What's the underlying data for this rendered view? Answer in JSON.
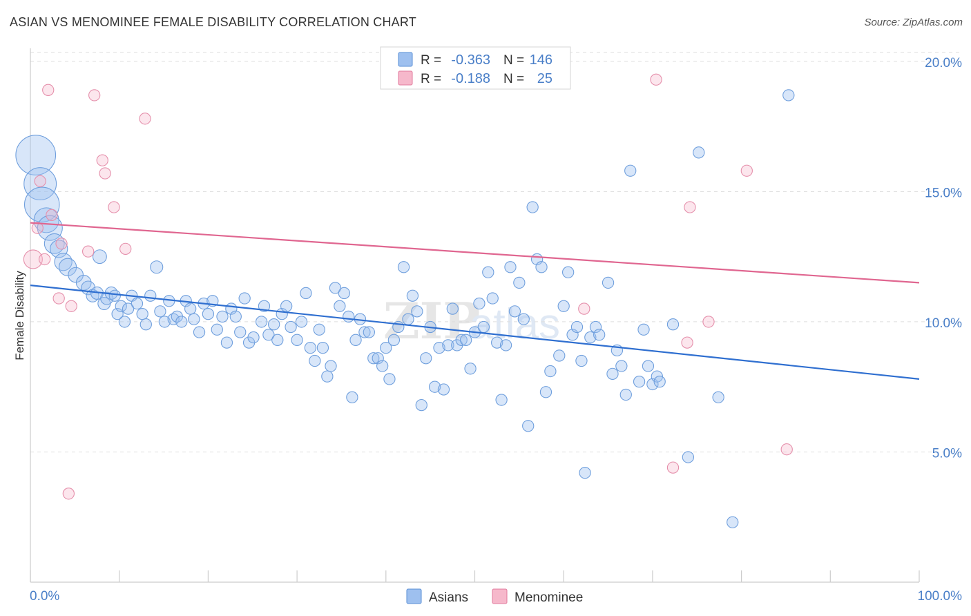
{
  "title": "ASIAN VS MENOMINEE FEMALE DISABILITY CORRELATION CHART",
  "source": "Source: ZipAtlas.com",
  "watermark": {
    "zip": "ZIP",
    "atlas": "atlas"
  },
  "legend_box": {
    "rows": [
      {
        "r_label": "R =",
        "r_value": "-0.363",
        "n_label": "N =",
        "n_value": "146",
        "color": "#9ec0ef",
        "stroke": "#5a8fd6"
      },
      {
        "r_label": "R =",
        "r_value": "-0.188",
        "n_label": "N =",
        "n_value": "25",
        "color": "#f6b8cb",
        "stroke": "#e27a9c"
      }
    ]
  },
  "bottom_legend": [
    {
      "label": "Asians",
      "color": "#9ec0ef",
      "stroke": "#5a8fd6"
    },
    {
      "label": "Menominee",
      "color": "#f6b8cb",
      "stroke": "#e27a9c"
    }
  ],
  "colors": {
    "blue_line": "#2f6fd0",
    "pink_line": "#e06690",
    "axis_text": "#4a7fc8",
    "grid": "#dddddd"
  },
  "chart_data": {
    "type": "scatter",
    "title": "ASIAN VS MENOMINEE FEMALE DISABILITY CORRELATION CHART",
    "xlabel": "",
    "ylabel": "Female Disability",
    "xlim": [
      0,
      100
    ],
    "ylim": [
      0,
      20.5
    ],
    "x_tick_labels": [
      "0.0%",
      "100.0%"
    ],
    "y_ticks": [
      5,
      10,
      15,
      20
    ],
    "y_tick_labels": [
      "5.0%",
      "10.0%",
      "15.0%",
      "20.0%"
    ],
    "series": [
      {
        "name": "Asians",
        "R": -0.363,
        "N": 146,
        "trend": {
          "x": [
            0,
            100
          ],
          "y": [
            11.4,
            7.8
          ]
        },
        "points": [
          [
            0.6,
            16.4,
            3.2
          ],
          [
            1.1,
            15.3,
            2.6
          ],
          [
            1.3,
            14.5,
            2.8
          ],
          [
            1.8,
            13.9,
            2.0
          ],
          [
            2.2,
            13.6,
            2.0
          ],
          [
            2.7,
            13.0,
            1.6
          ],
          [
            3.2,
            12.8,
            1.4
          ],
          [
            3.7,
            12.3,
            1.4
          ],
          [
            4.2,
            12.1,
            1.4
          ],
          [
            5.1,
            11.8,
            1.2
          ],
          [
            6.0,
            11.5,
            1.2
          ],
          [
            6.5,
            11.3,
            1.1
          ],
          [
            7.0,
            11.0,
            1.0
          ],
          [
            7.5,
            11.1,
            1.0
          ],
          [
            7.8,
            12.5,
            1.1
          ],
          [
            8.3,
            10.7,
            1.0
          ],
          [
            8.6,
            10.9,
            1.0
          ],
          [
            9.1,
            11.1,
            1.0
          ],
          [
            9.5,
            11.0,
            0.9
          ],
          [
            9.8,
            10.3,
            0.9
          ],
          [
            10.2,
            10.6,
            0.9
          ],
          [
            10.6,
            10.0,
            0.9
          ],
          [
            11.0,
            10.5,
            0.9
          ],
          [
            11.4,
            11.0,
            0.9
          ],
          [
            12.0,
            10.7,
            0.9
          ],
          [
            12.6,
            10.3,
            0.9
          ],
          [
            13.0,
            9.9,
            0.9
          ],
          [
            13.5,
            11.0,
            0.9
          ],
          [
            14.2,
            12.1,
            1.0
          ],
          [
            14.6,
            10.4,
            0.9
          ],
          [
            15.1,
            10.0,
            0.9
          ],
          [
            15.6,
            10.8,
            0.9
          ],
          [
            16.1,
            10.1,
            0.9
          ],
          [
            16.5,
            10.2,
            0.9
          ],
          [
            17.0,
            10.0,
            0.9
          ],
          [
            17.5,
            10.8,
            0.9
          ],
          [
            18.0,
            10.5,
            0.9
          ],
          [
            18.4,
            10.1,
            0.9
          ],
          [
            19.0,
            9.6,
            0.9
          ],
          [
            19.5,
            10.7,
            0.9
          ],
          [
            20.0,
            10.3,
            0.9
          ],
          [
            20.5,
            10.8,
            0.9
          ],
          [
            21.0,
            9.7,
            0.9
          ],
          [
            21.6,
            10.2,
            0.9
          ],
          [
            22.1,
            9.2,
            0.9
          ],
          [
            22.6,
            10.5,
            0.9
          ],
          [
            23.1,
            10.2,
            0.9
          ],
          [
            23.6,
            9.6,
            0.9
          ],
          [
            24.1,
            10.9,
            0.9
          ],
          [
            24.6,
            9.2,
            0.9
          ],
          [
            25.1,
            9.4,
            0.9
          ],
          [
            26.0,
            10.0,
            0.9
          ],
          [
            26.3,
            10.6,
            0.9
          ],
          [
            26.8,
            9.5,
            0.9
          ],
          [
            27.4,
            9.9,
            0.9
          ],
          [
            27.8,
            9.3,
            0.9
          ],
          [
            28.3,
            10.3,
            0.9
          ],
          [
            28.8,
            10.6,
            0.9
          ],
          [
            29.3,
            9.8,
            0.9
          ],
          [
            30.0,
            9.3,
            0.9
          ],
          [
            30.5,
            10.0,
            0.9
          ],
          [
            31.0,
            11.1,
            0.9
          ],
          [
            31.5,
            9.0,
            0.9
          ],
          [
            32.0,
            8.5,
            0.9
          ],
          [
            32.5,
            9.7,
            0.9
          ],
          [
            32.9,
            9.0,
            0.9
          ],
          [
            33.4,
            7.9,
            0.9
          ],
          [
            33.8,
            8.3,
            0.9
          ],
          [
            34.3,
            11.3,
            0.9
          ],
          [
            34.8,
            10.6,
            0.9
          ],
          [
            35.3,
            11.1,
            0.9
          ],
          [
            35.8,
            10.2,
            0.9
          ],
          [
            36.2,
            7.1,
            0.9
          ],
          [
            36.6,
            9.3,
            0.9
          ],
          [
            37.1,
            10.1,
            0.9
          ],
          [
            37.6,
            9.6,
            0.9
          ],
          [
            38.1,
            9.6,
            0.9
          ],
          [
            38.6,
            8.6,
            0.9
          ],
          [
            39.1,
            8.6,
            0.9
          ],
          [
            39.6,
            8.3,
            0.9
          ],
          [
            40.0,
            9.0,
            0.9
          ],
          [
            40.4,
            7.8,
            0.9
          ],
          [
            40.9,
            9.3,
            0.9
          ],
          [
            41.4,
            9.8,
            0.9
          ],
          [
            42.0,
            12.1,
            0.9
          ],
          [
            42.5,
            10.1,
            0.9
          ],
          [
            43.0,
            11.0,
            0.9
          ],
          [
            43.5,
            10.4,
            0.9
          ],
          [
            44.0,
            6.8,
            0.9
          ],
          [
            44.5,
            8.6,
            0.9
          ],
          [
            45.0,
            9.8,
            0.9
          ],
          [
            45.5,
            7.5,
            0.9
          ],
          [
            46.0,
            9.0,
            0.9
          ],
          [
            46.5,
            7.4,
            0.9
          ],
          [
            47.0,
            9.1,
            0.9
          ],
          [
            47.5,
            10.5,
            0.9
          ],
          [
            48.0,
            9.1,
            0.9
          ],
          [
            48.5,
            9.3,
            0.9
          ],
          [
            49.0,
            9.3,
            0.9
          ],
          [
            49.5,
            8.2,
            0.9
          ],
          [
            50.0,
            9.6,
            0.9
          ],
          [
            50.5,
            10.7,
            0.9
          ],
          [
            51.0,
            9.8,
            0.9
          ],
          [
            51.5,
            11.9,
            0.9
          ],
          [
            52.0,
            10.9,
            0.9
          ],
          [
            52.5,
            9.2,
            0.9
          ],
          [
            53.0,
            7.0,
            0.9
          ],
          [
            53.5,
            9.1,
            0.9
          ],
          [
            54.0,
            12.1,
            0.9
          ],
          [
            54.5,
            10.4,
            0.9
          ],
          [
            55.0,
            11.5,
            0.9
          ],
          [
            55.5,
            10.1,
            0.9
          ],
          [
            56.0,
            6.0,
            0.9
          ],
          [
            56.5,
            14.4,
            0.9
          ],
          [
            57.0,
            12.4,
            0.9
          ],
          [
            57.5,
            12.1,
            0.9
          ],
          [
            58.0,
            7.3,
            0.9
          ],
          [
            58.5,
            8.1,
            0.9
          ],
          [
            59.5,
            8.7,
            0.9
          ],
          [
            60.0,
            10.6,
            0.9
          ],
          [
            60.5,
            11.9,
            0.9
          ],
          [
            61.0,
            9.5,
            0.9
          ],
          [
            61.5,
            9.8,
            0.9
          ],
          [
            62.0,
            8.5,
            0.9
          ],
          [
            62.4,
            4.2,
            0.9
          ],
          [
            63.0,
            9.4,
            0.9
          ],
          [
            63.6,
            9.8,
            0.9
          ],
          [
            64.0,
            9.5,
            0.9
          ],
          [
            65.0,
            11.5,
            0.9
          ],
          [
            65.5,
            8.0,
            0.9
          ],
          [
            66.0,
            8.9,
            0.9
          ],
          [
            66.5,
            8.3,
            0.9
          ],
          [
            67.0,
            7.2,
            0.9
          ],
          [
            67.5,
            15.8,
            0.9
          ],
          [
            68.5,
            7.7,
            0.9
          ],
          [
            69.0,
            9.7,
            0.9
          ],
          [
            69.5,
            8.3,
            0.9
          ],
          [
            70.0,
            7.6,
            0.9
          ],
          [
            70.5,
            7.9,
            0.9
          ],
          [
            70.8,
            7.7,
            0.9
          ],
          [
            72.3,
            9.9,
            0.9
          ],
          [
            74.0,
            4.8,
            0.9
          ],
          [
            75.2,
            16.5,
            0.9
          ],
          [
            77.4,
            7.1,
            0.9
          ],
          [
            79.0,
            2.3,
            0.9
          ],
          [
            85.3,
            18.7,
            0.9
          ]
        ]
      },
      {
        "name": "Menominee",
        "R": -0.188,
        "N": 25,
        "trend": {
          "x": [
            0,
            100
          ],
          "y": [
            13.8,
            11.5
          ]
        },
        "points": [
          [
            0.3,
            12.4,
            1.5
          ],
          [
            0.8,
            13.6,
            0.9
          ],
          [
            1.1,
            15.4,
            0.9
          ],
          [
            1.6,
            12.4,
            0.9
          ],
          [
            2.0,
            18.9,
            0.9
          ],
          [
            2.4,
            14.1,
            0.9
          ],
          [
            3.2,
            10.9,
            0.9
          ],
          [
            3.5,
            13.0,
            0.9
          ],
          [
            4.3,
            3.4,
            0.9
          ],
          [
            4.6,
            10.6,
            0.9
          ],
          [
            6.5,
            12.7,
            0.9
          ],
          [
            7.2,
            18.7,
            0.9
          ],
          [
            8.1,
            16.2,
            0.9
          ],
          [
            8.4,
            15.7,
            0.9
          ],
          [
            9.4,
            14.4,
            0.9
          ],
          [
            10.7,
            12.8,
            0.9
          ],
          [
            12.9,
            17.8,
            0.9
          ],
          [
            62.3,
            10.5,
            0.9
          ],
          [
            70.4,
            19.3,
            0.9
          ],
          [
            72.3,
            4.4,
            0.9
          ],
          [
            73.9,
            9.2,
            0.9
          ],
          [
            74.2,
            14.4,
            0.9
          ],
          [
            76.3,
            10.0,
            0.9
          ],
          [
            80.6,
            15.8,
            0.9
          ],
          [
            85.1,
            5.1,
            0.9
          ]
        ]
      }
    ]
  }
}
